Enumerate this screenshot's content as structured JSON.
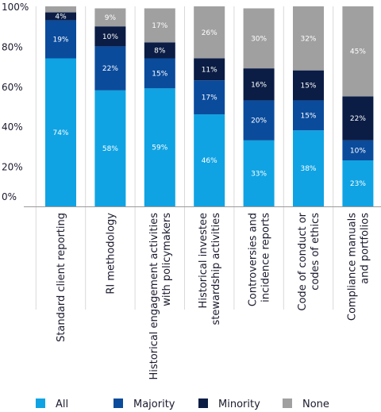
{
  "chart_data": {
    "type": "bar",
    "stacked": true,
    "title": "",
    "xlabel": "",
    "ylabel": "",
    "ylim": [
      0,
      100
    ],
    "yticks": [
      "100%",
      "80%",
      "60%",
      "40%",
      "20%",
      "0%"
    ],
    "ytick_values": [
      100,
      80,
      60,
      40,
      20,
      0
    ],
    "grid": false,
    "legend_position": "bottom",
    "categories": [
      [
        "Standard client reporting"
      ],
      [
        "RI methodology"
      ],
      [
        "Historical engagement activities",
        "with policymakers"
      ],
      [
        "Historical investee",
        "stewardship activities"
      ],
      [
        "Controversies and",
        "incidence reports"
      ],
      [
        "Code of conduct or",
        "codes of ethics"
      ],
      [
        "Compliance manuals",
        "and portfolios"
      ]
    ],
    "series": [
      {
        "name": "All",
        "color": "#0fa3e3",
        "values": [
          74,
          58,
          59,
          46,
          33,
          38,
          23
        ],
        "labels": [
          "74%",
          "58%",
          "59%",
          "46%",
          "33%",
          "38%",
          "23%"
        ]
      },
      {
        "name": "Majority",
        "color": "#0a4b9c",
        "values": [
          19,
          22,
          15,
          17,
          20,
          15,
          10
        ],
        "labels": [
          "19%",
          "22%",
          "15%",
          "17%",
          "20%",
          "15%",
          "10%"
        ]
      },
      {
        "name": "Minority",
        "color": "#0b1d45",
        "values": [
          4,
          10,
          8,
          11,
          16,
          15,
          22
        ],
        "labels": [
          "4%",
          "10%",
          "8%",
          "11%",
          "16%",
          "15%",
          "22%"
        ]
      },
      {
        "name": "None",
        "color": "#a0a0a0",
        "values": [
          3,
          9,
          17,
          26,
          30,
          32,
          45
        ],
        "labels": [
          "",
          "9%",
          "17%",
          "26%",
          "30%",
          "32%",
          "45%"
        ]
      }
    ]
  }
}
